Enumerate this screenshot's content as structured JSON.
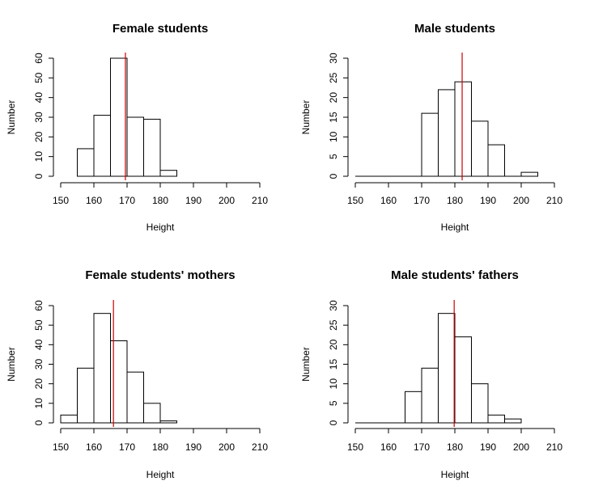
{
  "colors": {
    "background": "#ffffff",
    "bar_fill": "#ffffff",
    "bar_stroke": "#000000",
    "mean_line": "#cc0000"
  },
  "chart_data": [
    {
      "type": "bar",
      "title": "Female students",
      "xlabel": "Height",
      "ylabel": "Number",
      "bin_edges": [
        155,
        160,
        165,
        170,
        175,
        180,
        185
      ],
      "values": [
        14,
        31,
        60,
        30,
        29,
        3
      ],
      "mean_line_x": 169.5,
      "xlim": [
        150,
        210
      ],
      "xticks": [
        "150",
        "160",
        "170",
        "180",
        "190",
        "200",
        "210"
      ],
      "ylim": [
        0,
        60
      ],
      "yticks": [
        "0",
        "10",
        "20",
        "30",
        "40",
        "50",
        "60"
      ],
      "grid": false
    },
    {
      "type": "bar",
      "title": "Male students",
      "xlabel": "Height",
      "ylabel": "Number",
      "bin_edges": [
        150,
        155,
        160,
        165,
        170,
        175,
        180,
        185,
        190,
        195,
        200,
        205
      ],
      "values": [
        0,
        0,
        0,
        0,
        16,
        22,
        24,
        14,
        8,
        0,
        1
      ],
      "mean_line_x": 182.2,
      "xlim": [
        150,
        210
      ],
      "xticks": [
        "150",
        "160",
        "170",
        "180",
        "190",
        "200",
        "210"
      ],
      "ylim": [
        0,
        30
      ],
      "yticks": [
        "0",
        "5",
        "10",
        "15",
        "20",
        "25",
        "30"
      ],
      "grid": false
    },
    {
      "type": "bar",
      "title": "Female students' mothers",
      "xlabel": "Height",
      "ylabel": "Number",
      "bin_edges": [
        150,
        155,
        160,
        165,
        170,
        175,
        180,
        185
      ],
      "values": [
        4,
        28,
        56,
        42,
        26,
        10,
        1
      ],
      "mean_line_x": 165.9,
      "xlim": [
        150,
        210
      ],
      "xticks": [
        "150",
        "160",
        "170",
        "180",
        "190",
        "200",
        "210"
      ],
      "ylim": [
        0,
        60
      ],
      "yticks": [
        "0",
        "10",
        "20",
        "30",
        "40",
        "50",
        "60"
      ],
      "grid": false
    },
    {
      "type": "bar",
      "title": "Male students' fathers",
      "xlabel": "Height",
      "ylabel": "Number",
      "bin_edges": [
        150,
        155,
        160,
        165,
        170,
        175,
        180,
        185,
        190,
        195,
        200
      ],
      "values": [
        0,
        0,
        0,
        8,
        14,
        28,
        22,
        10,
        2,
        1
      ],
      "mean_line_x": 179.8,
      "xlim": [
        150,
        210
      ],
      "xticks": [
        "150",
        "160",
        "170",
        "180",
        "190",
        "200",
        "210"
      ],
      "ylim": [
        0,
        30
      ],
      "yticks": [
        "0",
        "5",
        "10",
        "15",
        "20",
        "25",
        "30"
      ],
      "grid": false
    }
  ]
}
